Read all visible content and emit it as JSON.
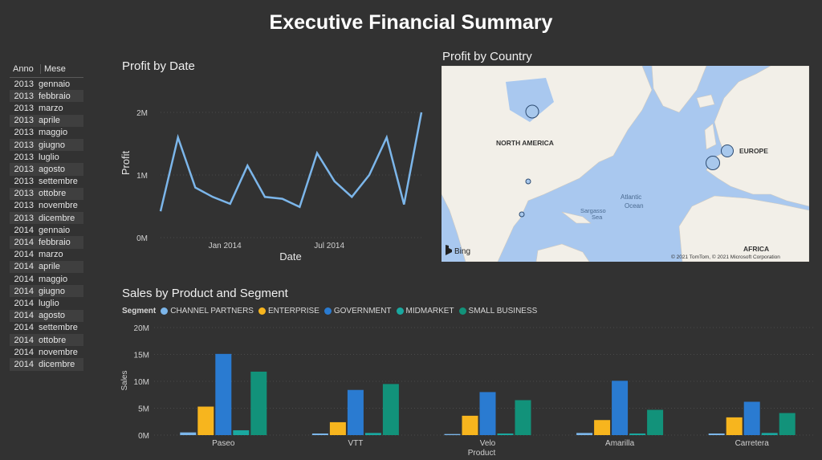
{
  "title": "Executive Financial Summary",
  "table": {
    "headers": [
      "Anno",
      "Mese"
    ],
    "rows": [
      [
        "2013",
        "gennaio"
      ],
      [
        "2013",
        "febbraio"
      ],
      [
        "2013",
        "marzo"
      ],
      [
        "2013",
        "aprile"
      ],
      [
        "2013",
        "maggio"
      ],
      [
        "2013",
        "giugno"
      ],
      [
        "2013",
        "luglio"
      ],
      [
        "2013",
        "agosto"
      ],
      [
        "2013",
        "settembre"
      ],
      [
        "2013",
        "ottobre"
      ],
      [
        "2013",
        "novembre"
      ],
      [
        "2013",
        "dicembre"
      ],
      [
        "2014",
        "gennaio"
      ],
      [
        "2014",
        "febbraio"
      ],
      [
        "2014",
        "marzo"
      ],
      [
        "2014",
        "aprile"
      ],
      [
        "2014",
        "maggio"
      ],
      [
        "2014",
        "giugno"
      ],
      [
        "2014",
        "luglio"
      ],
      [
        "2014",
        "agosto"
      ],
      [
        "2014",
        "settembre"
      ],
      [
        "2014",
        "ottobre"
      ],
      [
        "2014",
        "novembre"
      ],
      [
        "2014",
        "dicembre"
      ]
    ]
  },
  "profit_title": "Profit by Date",
  "map": {
    "title": "Profit by Country",
    "labels": [
      "NORTH AMERICA",
      "EUROPE",
      "AFRICA",
      "Atlantic",
      "Ocean",
      "Sargasso",
      "Sea"
    ],
    "bing": "Bing",
    "copyright": "© 2021 TomTom, © 2021 Microsoft Corporation",
    "bubble_color": "#a8c8ec"
  },
  "sales_title": "Sales by Product and Segment",
  "legend_title": "Segment",
  "chart_data": [
    {
      "type": "line",
      "title": "Profit by Date",
      "xlabel": "Date",
      "ylabel": "Profit",
      "x": [
        "2013-09",
        "2013-10",
        "2013-11",
        "2013-12",
        "2014-01",
        "2014-02",
        "2014-03",
        "2014-04",
        "2014-05",
        "2014-06",
        "2014-07",
        "2014-08",
        "2014-09",
        "2014-10",
        "2014-11",
        "2014-12"
      ],
      "values": [
        420000,
        1600000,
        800000,
        650000,
        540000,
        1150000,
        650000,
        620000,
        490000,
        1350000,
        900000,
        650000,
        1000000,
        1600000,
        530000,
        2000000
      ],
      "x_ticks": [
        "Jan 2014",
        "Jul 2014"
      ],
      "y_ticks": [
        "0M",
        "1M",
        "2M"
      ],
      "ylim": [
        0,
        2000000
      ],
      "color": "#7cb6ea"
    },
    {
      "type": "bar",
      "title": "Sales by Product and Segment",
      "xlabel": "Product",
      "ylabel": "Sales",
      "categories": [
        "Paseo",
        "VTT",
        "Velo",
        "Amarilla",
        "Carretera"
      ],
      "series": [
        {
          "name": "CHANNEL PARTNERS",
          "color": "#7cb6ea",
          "values": [
            500000,
            300000,
            200000,
            400000,
            300000
          ]
        },
        {
          "name": "ENTERPRISE",
          "color": "#f7b51e",
          "values": [
            5300000,
            2400000,
            3600000,
            2800000,
            3300000
          ]
        },
        {
          "name": "GOVERNMENT",
          "color": "#2a7bd1",
          "values": [
            15100000,
            8400000,
            8000000,
            10100000,
            6200000
          ]
        },
        {
          "name": "MIDMARKET",
          "color": "#1aa8a0",
          "values": [
            900000,
            400000,
            300000,
            300000,
            400000
          ]
        },
        {
          "name": "SMALL BUSINESS",
          "color": "#12927a",
          "values": [
            11800000,
            9500000,
            6500000,
            4700000,
            4100000
          ]
        }
      ],
      "y_ticks": [
        "0M",
        "5M",
        "10M",
        "15M",
        "20M"
      ],
      "ylim": [
        0,
        20000000
      ]
    }
  ]
}
